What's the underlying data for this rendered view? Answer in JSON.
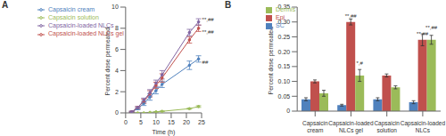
{
  "chart_data": [
    {
      "type": "line",
      "panel_label": "A",
      "xlabel": "Time (h)",
      "ylabel": "Percent dose permeated",
      "x": [
        2,
        4,
        6,
        8,
        10,
        12,
        21,
        24
      ],
      "xlim": [
        0,
        25
      ],
      "xticks": [
        0,
        5,
        10,
        15,
        20,
        25
      ],
      "ylim": [
        0,
        10
      ],
      "yticks": [
        0,
        2,
        4,
        6,
        8,
        10
      ],
      "grid": false,
      "legend": "upper left",
      "series": [
        {
          "name": "Capsaicin cream",
          "color": "#4f81bd",
          "marker": "circle",
          "values": [
            0.1,
            0.4,
            0.9,
            1.5,
            2.1,
            2.7,
            4.5,
            5.1
          ],
          "errors": [
            0.05,
            0.1,
            0.2,
            0.3,
            0.3,
            0.3,
            0.4,
            0.3
          ],
          "annotations": [
            null,
            null,
            null,
            null,
            null,
            null,
            null,
            "##"
          ]
        },
        {
          "name": "Capsaicin-loaded NLCs gel",
          "color": "#c0504d",
          "marker": "circle",
          "values": [
            0.1,
            0.5,
            1.1,
            1.8,
            2.6,
            3.3,
            6.9,
            8.0
          ],
          "errors": [
            0.05,
            0.1,
            0.2,
            0.3,
            0.3,
            0.4,
            0.3,
            0.3
          ],
          "annotations": [
            null,
            null,
            null,
            null,
            null,
            null,
            null,
            "**,##"
          ]
        },
        {
          "name": "Capsaicin solution",
          "color": "#9bbb59",
          "marker": "circle",
          "values": [
            0,
            0,
            0,
            0.05,
            0.1,
            0.15,
            0.4,
            0.6
          ],
          "errors": [
            0,
            0,
            0,
            0,
            0.02,
            0.03,
            0.05,
            0.08
          ],
          "annotations": [
            null,
            null,
            null,
            null,
            null,
            null,
            null,
            null
          ]
        },
        {
          "name": "Capsaicin-loaded NLCs",
          "color": "#8064a2",
          "marker": "circle",
          "values": [
            0.1,
            0.5,
            1.2,
            1.9,
            2.8,
            3.6,
            7.6,
            8.6
          ],
          "errors": [
            0.05,
            0.1,
            0.2,
            0.3,
            0.3,
            0.4,
            0.3,
            0.3
          ],
          "annotations": [
            null,
            null,
            null,
            null,
            null,
            null,
            null,
            "**,##"
          ]
        }
      ]
    },
    {
      "type": "bar",
      "panel_label": "B",
      "ylabel": "Percent dose permeated",
      "categories": [
        "Capsaicin cream",
        "Capsaicin-loaded NLCs gel",
        "Capsaicin solution",
        "Capsaicin-loaded NLCs"
      ],
      "ylim": [
        0,
        0.35
      ],
      "yticks": [
        0,
        0.05,
        {
          "value": 0.1,
          "label": "0.10"
        },
        0.15,
        {
          "value": 0.2,
          "label": "0.20"
        },
        0.25,
        {
          "value": 0.3,
          "label": "0.30"
        },
        0.35
      ],
      "grid": false,
      "legend": "upper left",
      "series": [
        {
          "name": "SC",
          "color": "#4f81bd",
          "values": [
            0.04,
            0.02,
            0.04,
            0.03
          ],
          "errors": [
            0.005,
            0.003,
            0.005,
            0.005
          ],
          "annotations": [
            null,
            null,
            null,
            null
          ]
        },
        {
          "name": "Epi",
          "color": "#c0504d",
          "values": [
            0.1,
            0.3,
            0.12,
            0.24
          ],
          "errors": [
            0.005,
            0.01,
            0.005,
            0.02
          ],
          "annotations": [
            null,
            "**,##",
            null,
            "**,##"
          ]
        },
        {
          "name": "Dermis",
          "color": "#9bbb59",
          "values": [
            0.06,
            0.12,
            0.08,
            0.24
          ],
          "errors": [
            0.01,
            0.02,
            0.005,
            0.015
          ],
          "annotations": [
            null,
            "*,#",
            null,
            "**,##"
          ]
        }
      ]
    }
  ]
}
